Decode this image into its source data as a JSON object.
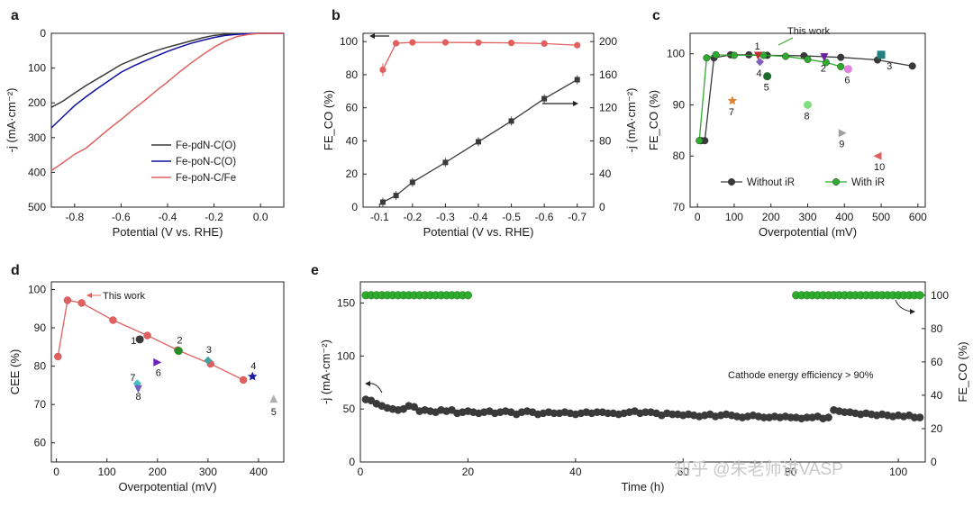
{
  "panels": {
    "a": {
      "letter": "a"
    },
    "b": {
      "letter": "b"
    },
    "c": {
      "letter": "c"
    },
    "d": {
      "letter": "d"
    },
    "e": {
      "letter": "e"
    }
  },
  "annotations": {
    "c_this_work": "This work",
    "d_this_work": "This work",
    "e_efficiency": "Cathode energy efficiency > 90%",
    "watermark": "知乎 @朱老师讲VASP"
  },
  "colors": {
    "black": "#3a3a3a",
    "blue": "#1010a0",
    "red": "#e06060",
    "green": "#2eaa2e",
    "grey": "#555555"
  },
  "chart_data": [
    {
      "id": "a",
      "type": "line",
      "xlabel": "Potential (V vs. RHE)",
      "ylabel": "-j (mA·cm⁻²)",
      "xlim": [
        -0.9,
        0.1
      ],
      "ylim": [
        500,
        0
      ],
      "xticks": [
        "-0.8",
        "-0.6",
        "-0.4",
        "-0.2",
        "0.0"
      ],
      "xtick_values": [
        -0.8,
        -0.6,
        -0.4,
        -0.2,
        0.0
      ],
      "yticks": [
        "0",
        "100",
        "200",
        "300",
        "400",
        "500"
      ],
      "ytick_values": [
        0,
        100,
        200,
        300,
        400,
        500
      ],
      "legend_position": "bottom-right",
      "series": [
        {
          "name": "Fe-pdN-C(O)",
          "color": "#3a3a3a",
          "x": [
            -0.9,
            -0.85,
            -0.8,
            -0.75,
            -0.7,
            -0.65,
            -0.6,
            -0.55,
            -0.5,
            -0.45,
            -0.4,
            -0.35,
            -0.3,
            -0.25,
            -0.2,
            -0.15,
            -0.1,
            -0.05,
            0.0,
            0.05,
            0.1
          ],
          "y": [
            213,
            195,
            172,
            150,
            130,
            110,
            90,
            76,
            62,
            50,
            40,
            31,
            22,
            13,
            6,
            3,
            1,
            0.5,
            0,
            0,
            0
          ]
        },
        {
          "name": "Fe-poN-C(O)",
          "color": "#1010a0",
          "x": [
            -0.9,
            -0.85,
            -0.8,
            -0.75,
            -0.7,
            -0.65,
            -0.6,
            -0.55,
            -0.5,
            -0.45,
            -0.4,
            -0.35,
            -0.3,
            -0.25,
            -0.2,
            -0.15,
            -0.1,
            -0.05,
            0.0,
            0.05,
            0.1
          ],
          "y": [
            272,
            240,
            208,
            182,
            158,
            135,
            112,
            95,
            80,
            66,
            52,
            40,
            29,
            20,
            12,
            6,
            3,
            1,
            0,
            0,
            0
          ]
        },
        {
          "name": "Fe-poN-C/Fe",
          "color": "#e06060",
          "x": [
            -0.9,
            -0.85,
            -0.8,
            -0.75,
            -0.7,
            -0.65,
            -0.6,
            -0.55,
            -0.5,
            -0.45,
            -0.4,
            -0.35,
            -0.3,
            -0.25,
            -0.2,
            -0.15,
            -0.1,
            -0.05,
            0.0,
            0.05,
            0.1
          ],
          "y": [
            395,
            372,
            348,
            330,
            302,
            274,
            248,
            220,
            194,
            166,
            140,
            112,
            86,
            62,
            40,
            22,
            9,
            3,
            0,
            0,
            0
          ]
        }
      ]
    },
    {
      "id": "b",
      "type": "line",
      "xlabel": "Potential (V vs. RHE)",
      "ylabel": "FE_CO (%)",
      "y2label": "-j (mA·cm⁻²)",
      "xlim": [
        -0.05,
        -0.75
      ],
      "ylim": [
        0,
        105
      ],
      "y2lim": [
        0,
        210
      ],
      "xticks": [
        "-0.1",
        "-0.2",
        "-0.3",
        "-0.4",
        "-0.5",
        "-0.6",
        "-0.7"
      ],
      "xtick_values": [
        -0.1,
        -0.2,
        -0.3,
        -0.4,
        -0.5,
        -0.6,
        -0.7
      ],
      "yticks": [
        "0",
        "20",
        "40",
        "60",
        "80",
        "100"
      ],
      "ytick_values": [
        0,
        20,
        40,
        60,
        80,
        100
      ],
      "y2ticks": [
        "0",
        "40",
        "80",
        "120",
        "160",
        "200"
      ],
      "y2tick_values": [
        0,
        40,
        80,
        120,
        160,
        200
      ],
      "series": [
        {
          "name": "FE_CO",
          "axis": "left",
          "color": "#e06060",
          "x": [
            -0.11,
            -0.15,
            -0.2,
            -0.3,
            -0.4,
            -0.5,
            -0.6,
            -0.7
          ],
          "y": [
            83,
            99,
            99.5,
            99.5,
            99.4,
            99.2,
            98.8,
            97.8
          ]
        },
        {
          "name": "-j",
          "axis": "right",
          "color": "#3a3a3a",
          "x": [
            -0.11,
            -0.15,
            -0.2,
            -0.3,
            -0.4,
            -0.5,
            -0.6,
            -0.7
          ],
          "y": [
            6,
            14,
            30,
            54,
            79,
            104,
            131,
            154
          ]
        }
      ]
    },
    {
      "id": "c",
      "type": "scatter",
      "xlabel": "Overpotential (mV)",
      "ylabel": "FE_CO (%)",
      "xlim": [
        -20,
        620
      ],
      "ylim": [
        70,
        104
      ],
      "xticks": [
        "0",
        "100",
        "200",
        "300",
        "400",
        "500",
        "600"
      ],
      "xtick_values": [
        0,
        100,
        200,
        300,
        400,
        500,
        600
      ],
      "yticks": [
        "70",
        "80",
        "90",
        "100"
      ],
      "ytick_values": [
        70,
        80,
        90,
        100
      ],
      "legend_position": "bottom",
      "series": [
        {
          "name": "Without iR",
          "color": "#3a3a3a",
          "x": [
            10,
            20,
            45,
            90,
            140,
            190,
            290,
            390,
            490,
            585
          ],
          "y": [
            83,
            83,
            99.2,
            99.8,
            99.8,
            99.7,
            99.6,
            99.3,
            98.8,
            97.6
          ]
        },
        {
          "name": "With iR",
          "color": "#2eaa2e",
          "x": [
            5,
            25,
            50,
            100,
            180,
            240,
            300,
            350,
            390
          ],
          "y": [
            83,
            99.2,
            99.8,
            99.7,
            99.7,
            99.5,
            98.9,
            98.3,
            97.5
          ]
        }
      ],
      "references": [
        {
          "label": "1",
          "x": 165,
          "y": 99.6,
          "color": "#c03030",
          "shape": "tri-down"
        },
        {
          "label": "2",
          "x": 345,
          "y": 99.3,
          "color": "#6a20a0",
          "shape": "tri-down"
        },
        {
          "label": "3",
          "x": 500,
          "y": 99.8,
          "color": "#208080",
          "shape": "square"
        },
        {
          "label": "4",
          "x": 170,
          "y": 98.4,
          "color": "#8060c0",
          "shape": "diamond"
        },
        {
          "label": "5",
          "x": 190,
          "y": 95.6,
          "color": "#1a6a2a",
          "shape": "circle"
        },
        {
          "label": "6",
          "x": 410,
          "y": 97.0,
          "color": "#e080e0",
          "shape": "circle"
        },
        {
          "label": "7",
          "x": 95,
          "y": 90.8,
          "color": "#e08030",
          "shape": "star"
        },
        {
          "label": "8",
          "x": 300,
          "y": 90.0,
          "color": "#80e080",
          "shape": "circle"
        },
        {
          "label": "9",
          "x": 395,
          "y": 84.5,
          "color": "#a0a0a0",
          "shape": "tri-right"
        },
        {
          "label": "10",
          "x": 490,
          "y": 80.0,
          "color": "#e06060",
          "shape": "tri-left"
        }
      ]
    },
    {
      "id": "d",
      "type": "line",
      "xlabel": "Overpotential (mV)",
      "ylabel": "CEE (%)",
      "xlim": [
        -10,
        450
      ],
      "ylim": [
        55,
        102
      ],
      "xticks": [
        "0",
        "100",
        "200",
        "300",
        "400"
      ],
      "xtick_values": [
        0,
        100,
        200,
        300,
        400
      ],
      "yticks": [
        "60",
        "70",
        "80",
        "90",
        "100"
      ],
      "ytick_values": [
        60,
        70,
        80,
        90,
        100
      ],
      "series": [
        {
          "name": "This work",
          "color": "#e06060",
          "x": [
            3,
            22,
            50,
            112,
            180,
            240,
            305,
            370
          ],
          "y": [
            82.5,
            97.2,
            96.5,
            92.0,
            88.0,
            84.2,
            80.6,
            76.4
          ]
        }
      ],
      "references": [
        {
          "label": "1",
          "x": 165,
          "y": 87.0,
          "color": "#3a3a3a",
          "shape": "circle"
        },
        {
          "label": "2",
          "x": 242,
          "y": 84.0,
          "color": "#2a8a2a",
          "shape": "circle"
        },
        {
          "label": "3",
          "x": 300,
          "y": 81.5,
          "color": "#40a0a0",
          "shape": "diamond"
        },
        {
          "label": "4",
          "x": 388,
          "y": 77.3,
          "color": "#1a1aa0",
          "shape": "star"
        },
        {
          "label": "5",
          "x": 430,
          "y": 71.5,
          "color": "#b0b0b0",
          "shape": "tri-up"
        },
        {
          "label": "6",
          "x": 200,
          "y": 81.0,
          "color": "#7020c0",
          "shape": "tri-right"
        },
        {
          "label": "7",
          "x": 160,
          "y": 75.5,
          "color": "#40c0c0",
          "shape": "diamond"
        },
        {
          "label": "8",
          "x": 162,
          "y": 74.0,
          "color": "#7060c0",
          "shape": "tri-down"
        }
      ]
    },
    {
      "id": "e",
      "type": "scatter",
      "xlabel": "Time (h)",
      "ylabel": "-j (mA·cm⁻²)",
      "y2label": "FE_CO (%)",
      "xlim": [
        0,
        105
      ],
      "ylim": [
        0,
        170
      ],
      "y2lim": [
        0,
        108
      ],
      "xticks": [
        "0",
        "20",
        "40",
        "60",
        "80",
        "100"
      ],
      "xtick_values": [
        0,
        20,
        40,
        60,
        80,
        100
      ],
      "yticks": [
        "0",
        "50",
        "100",
        "150"
      ],
      "ytick_values": [
        0,
        50,
        100,
        150
      ],
      "y2ticks": [
        "0",
        "20",
        "40",
        "60",
        "80",
        "100"
      ],
      "y2tick_values": [
        0,
        20,
        40,
        60,
        80,
        100
      ],
      "series": [
        {
          "name": "-j",
          "axis": "left",
          "color": "#3a3a3a",
          "x": [
            1,
            2,
            3,
            4,
            5,
            6,
            7,
            8,
            9,
            10,
            11,
            12,
            13,
            14,
            15,
            16,
            17,
            18,
            19,
            20,
            21,
            22,
            23,
            24,
            25,
            26,
            27,
            28,
            29,
            30,
            31,
            32,
            33,
            34,
            35,
            36,
            37,
            38,
            39,
            40,
            41,
            42,
            43,
            44,
            45,
            46,
            47,
            48,
            49,
            50,
            51,
            52,
            53,
            54,
            55,
            56,
            57,
            58,
            59,
            60,
            61,
            62,
            63,
            64,
            65,
            66,
            67,
            68,
            69,
            70,
            71,
            72,
            73,
            74,
            75,
            76,
            77,
            78,
            79,
            80,
            81,
            82,
            83,
            84,
            85,
            86,
            87,
            88,
            89,
            90,
            91,
            92,
            93,
            94,
            95,
            96,
            97,
            98,
            99,
            100,
            101,
            102,
            103,
            104
          ],
          "y": [
            59,
            58,
            55,
            53,
            51,
            50,
            49,
            50,
            53,
            52,
            48,
            49,
            48,
            47,
            49,
            48,
            49,
            46,
            47,
            48,
            47,
            46,
            47,
            48,
            46,
            47,
            48,
            47,
            45,
            47,
            48,
            47,
            45,
            46,
            47,
            46,
            46,
            47,
            46,
            45,
            46,
            47,
            46,
            47,
            47,
            46,
            46,
            45,
            46,
            47,
            48,
            46,
            47,
            47,
            46,
            44,
            46,
            45,
            45,
            44,
            45,
            44,
            43,
            44,
            45,
            43,
            44,
            45,
            44,
            43,
            42,
            43,
            44,
            43,
            42,
            42,
            43,
            42,
            43,
            42,
            42,
            41,
            42,
            42,
            43,
            41,
            42,
            49,
            48,
            47,
            47,
            46,
            45,
            46,
            45,
            44,
            45,
            44,
            43,
            44,
            43,
            44,
            42,
            42
          ]
        },
        {
          "name": "FE_CO",
          "axis": "right",
          "color": "#2eaa2e",
          "x": [
            1,
            2,
            3,
            4,
            5,
            6,
            7,
            8,
            9,
            10,
            11,
            12,
            13,
            14,
            15,
            16,
            17,
            18,
            19,
            20,
            81,
            82,
            83,
            84,
            85,
            86,
            87,
            88,
            89,
            90,
            91,
            92,
            93,
            94,
            95,
            96,
            97,
            98,
            99,
            100,
            101,
            102,
            103,
            104
          ],
          "y": [
            100,
            100,
            100,
            100,
            100,
            100,
            100,
            100,
            100,
            100,
            100,
            100,
            100,
            100,
            100,
            100,
            100,
            100,
            100,
            100,
            100,
            100,
            100,
            100,
            100,
            100,
            100,
            100,
            100,
            100,
            100,
            100,
            100,
            100,
            100,
            100,
            100,
            100,
            100,
            100,
            100,
            100,
            100,
            100
          ]
        }
      ]
    }
  ]
}
